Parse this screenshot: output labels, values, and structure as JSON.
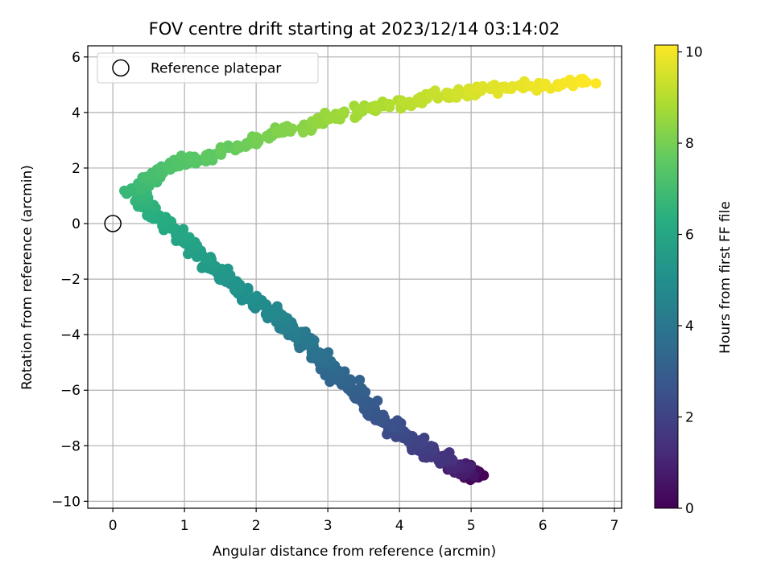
{
  "chart_data": {
    "type": "scatter",
    "title": "FOV centre drift starting at 2023/12/14 03:14:02",
    "xlabel": "Angular distance from reference (arcmin)",
    "ylabel": "Rotation from reference (arcmin)",
    "xlim": [
      -0.35,
      7.1
    ],
    "ylim": [
      -10.25,
      6.4
    ],
    "x_ticks": [
      0,
      1,
      2,
      3,
      4,
      5,
      6,
      7
    ],
    "x_tick_labels": [
      "0",
      "1",
      "2",
      "3",
      "4",
      "5",
      "6",
      "7"
    ],
    "y_ticks": [
      -10,
      -8,
      -6,
      -4,
      -2,
      0,
      2,
      4,
      6
    ],
    "y_tick_labels": [
      "−10",
      "−8",
      "−6",
      "−4",
      "−2",
      "0",
      "2",
      "4",
      "6"
    ],
    "grid": true,
    "legend": {
      "entries": [
        "Reference platepar"
      ],
      "position": "top-left"
    },
    "reference_point": {
      "x": 0,
      "y": 0
    },
    "colorbar": {
      "label": "Hours from first FF file",
      "range": [
        0,
        10.15
      ],
      "ticks": [
        0,
        2,
        4,
        6,
        8,
        10
      ],
      "tick_labels": [
        "0",
        "2",
        "4",
        "6",
        "8",
        "10"
      ],
      "colormap": "viridis"
    },
    "path_waypoints": [
      {
        "t": 0.0,
        "x": 5.1,
        "y": -9.1
      },
      {
        "t": 0.6,
        "x": 4.9,
        "y": -8.9
      },
      {
        "t": 1.3,
        "x": 4.7,
        "y": -8.6
      },
      {
        "t": 2.0,
        "x": 4.2,
        "y": -7.9
      },
      {
        "t": 2.7,
        "x": 3.7,
        "y": -6.9
      },
      {
        "t": 3.3,
        "x": 3.2,
        "y": -5.6
      },
      {
        "t": 4.0,
        "x": 2.7,
        "y": -4.3
      },
      {
        "t": 4.6,
        "x": 2.3,
        "y": -3.4
      },
      {
        "t": 5.3,
        "x": 1.6,
        "y": -2.1
      },
      {
        "t": 5.8,
        "x": 1.1,
        "y": -0.9
      },
      {
        "t": 6.3,
        "x": 0.6,
        "y": 0.3
      },
      {
        "t": 6.8,
        "x": 0.3,
        "y": 1.2
      },
      {
        "t": 7.2,
        "x": 0.7,
        "y": 1.9
      },
      {
        "t": 7.7,
        "x": 1.5,
        "y": 2.6
      },
      {
        "t": 8.2,
        "x": 2.4,
        "y": 3.3
      },
      {
        "t": 8.7,
        "x": 3.3,
        "y": 4.0
      },
      {
        "t": 9.2,
        "x": 4.3,
        "y": 4.5
      },
      {
        "t": 9.7,
        "x": 5.3,
        "y": 4.9
      },
      {
        "t": 10.15,
        "x": 6.7,
        "y": 5.1
      }
    ]
  }
}
